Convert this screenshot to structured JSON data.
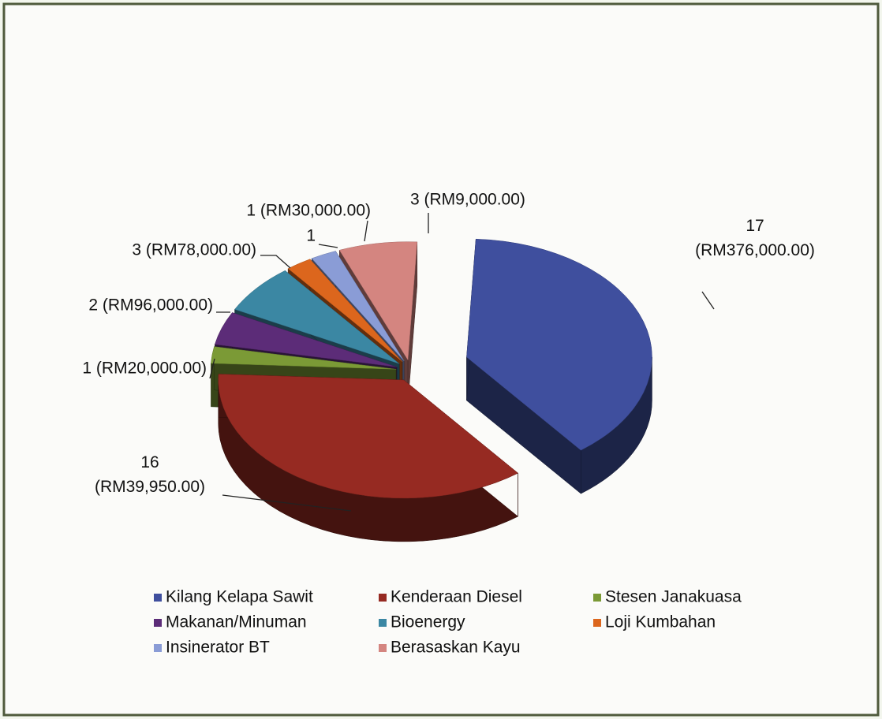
{
  "chart_data": {
    "type": "pie3d",
    "categories": [
      "Kilang Kelapa Sawit",
      "Kenderaan Diesel",
      "Stesen Janakuasa",
      "Makanan/Minuman",
      "Bioenergy",
      "Loji Kumbahan",
      "Insinerator BT",
      "Berasaskan Kayu"
    ],
    "values": [
      17,
      16,
      1,
      2,
      3,
      1,
      1,
      3
    ],
    "value_labels": [
      "17 (RM376,000.00)",
      "16 (RM39,950.00)",
      "1 (RM20,000.00)",
      "2 (RM96,000.00)",
      "3 (RM78,000.00)",
      "1",
      "1 (RM30,000.00)",
      "3 (RM9,000.00)"
    ],
    "colors": [
      "#3f4f9e",
      "#962a22",
      "#7b9a36",
      "#5c2c78",
      "#3b87a3",
      "#dc661d",
      "#8a9cd6",
      "#d48580"
    ],
    "legend": "bottom"
  }
}
